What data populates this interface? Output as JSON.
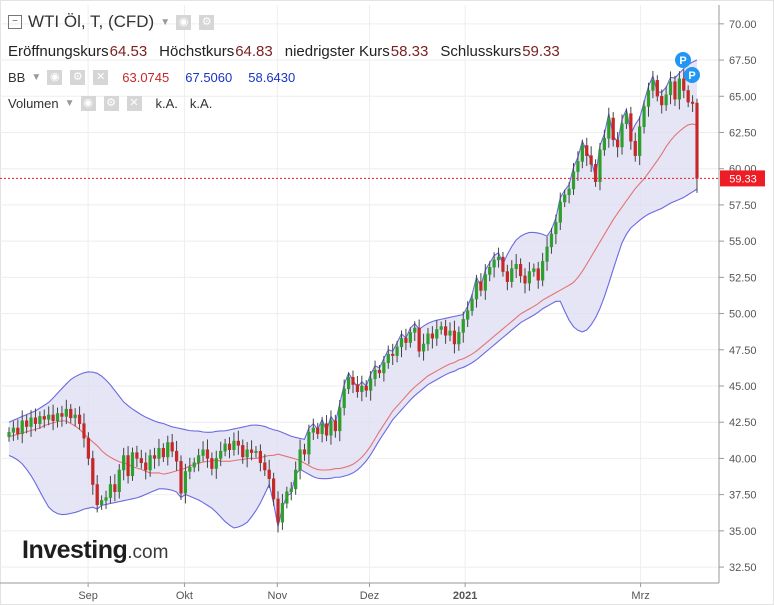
{
  "header": {
    "title": "WTI Öl, T, (CFD)"
  },
  "ohlc": [
    {
      "label": "Eröffnungskurs",
      "value": "64.53"
    },
    {
      "label": "Höchstkurs",
      "value": "64.83"
    },
    {
      "label": "niedrigster Kurs",
      "value": "58.33"
    },
    {
      "label": "Schlusskurs",
      "value": "59.33"
    }
  ],
  "bb": {
    "label": "BB",
    "middle": "63.0745",
    "upper": "67.5060",
    "lower": "58.6430"
  },
  "volume": {
    "label": "Volumen",
    "value1": "k.A.",
    "value2": "k.A."
  },
  "logo": {
    "main": "Investing",
    "suffix": ".com"
  },
  "price_badge": "59.33",
  "markers": [
    "P",
    "P"
  ],
  "colors": {
    "up": "#2e9e2e",
    "down": "#c62828",
    "band_fill": "#dcdcf3",
    "band_line": "#6a6ae0",
    "mid_line": "#e57373",
    "accent": "#ee1c25"
  },
  "chart_data": {
    "type": "candlestick",
    "x_tick_labels": [
      "Sep",
      "Okt",
      "Nov",
      "Dez",
      "2021",
      "Mrz"
    ],
    "y_ticks": [
      "32.50",
      "35.00",
      "37.50",
      "40.00",
      "42.50",
      "45.00",
      "47.50",
      "50.00",
      "52.50",
      "55.00",
      "57.50",
      "60.00",
      "62.50",
      "65.00",
      "67.50",
      "70.00"
    ],
    "ylim": [
      31.4,
      71.3
    ],
    "grid": true,
    "last_price": 59.33,
    "closes": [
      41.8,
      42.1,
      41.7,
      42.6,
      42.2,
      42.8,
      42.4,
      42.9,
      42.7,
      43.0,
      42.6,
      43.1,
      42.9,
      43.4,
      42.8,
      43.0,
      42.4,
      41.4,
      40.0,
      38.2,
      36.8,
      37.1,
      37.3,
      38.2,
      37.7,
      39.2,
      40.2,
      38.8,
      40.4,
      40.0,
      39.7,
      39.2,
      40.2,
      40.0,
      40.7,
      40.1,
      41.1,
      40.5,
      39.8,
      37.6,
      39.1,
      39.4,
      39.7,
      40.2,
      40.6,
      40.0,
      39.3,
      40.0,
      40.5,
      41.0,
      40.6,
      41.2,
      40.9,
      40.1,
      40.6,
      40.4,
      40.5,
      39.7,
      39.2,
      38.6,
      37.2,
      35.6,
      36.9,
      37.7,
      37.9,
      39.2,
      40.6,
      40.3,
      41.8,
      42.1,
      41.7,
      42.4,
      41.6,
      42.6,
      41.9,
      43.5,
      44.8,
      45.6,
      45.1,
      44.6,
      45.0,
      44.7,
      45.5,
      46.1,
      45.9,
      46.6,
      47.2,
      47.1,
      47.7,
      48.3,
      48.0,
      48.7,
      49.0,
      47.4,
      47.9,
      48.6,
      48.3,
      48.9,
      49.1,
      48.5,
      48.8,
      47.9,
      48.7,
      49.6,
      50.2,
      51.0,
      52.2,
      51.6,
      52.7,
      53.2,
      53.7,
      53.9,
      52.9,
      52.2,
      53.1,
      53.4,
      52.6,
      52.1,
      52.9,
      53.1,
      52.3,
      53.6,
      54.6,
      55.5,
      56.3,
      57.7,
      58.2,
      58.6,
      59.8,
      60.5,
      61.6,
      60.9,
      60.3,
      59.1,
      61.3,
      62.1,
      63.5,
      62.0,
      61.5,
      63.1,
      63.8,
      61.9,
      60.9,
      62.9,
      64.3,
      65.4,
      66.1,
      65.0,
      64.4,
      65.1,
      66.0,
      64.8,
      66.2,
      65.4,
      64.6,
      64.5,
      59.33
    ],
    "bb_mid": [
      41.5,
      41.6,
      41.7,
      41.8,
      41.9,
      42.0,
      42.1,
      42.3,
      42.4,
      42.5,
      42.6,
      42.6,
      42.4,
      42.2,
      41.9,
      41.5,
      41.2,
      40.9,
      40.5,
      40.2,
      40.0,
      39.8,
      39.7,
      39.6,
      39.4,
      39.3,
      39.2,
      39.0,
      39.0,
      39.0,
      38.9,
      39.0,
      39.1,
      39.2,
      39.3,
      39.5,
      39.6,
      39.7,
      39.8,
      39.8,
      39.9,
      39.8,
      39.8,
      39.8,
      39.9,
      39.9,
      40.0,
      40.0,
      40.0,
      40.1,
      40.2,
      40.2,
      40.3,
      40.2,
      40.1,
      40.0,
      39.9,
      39.7,
      39.5,
      39.3,
      39.2,
      39.2,
      39.2,
      39.3,
      39.3,
      39.4,
      39.5,
      39.7,
      40.0,
      40.4,
      40.9,
      41.5,
      42.1,
      42.6,
      43.2,
      43.6,
      44.0,
      44.4,
      44.8,
      45.1,
      45.4,
      45.7,
      45.9,
      46.1,
      46.3,
      46.5,
      46.6,
      46.8,
      46.9,
      47.1,
      47.3,
      47.6,
      47.9,
      48.2,
      48.5,
      48.8,
      49.1,
      49.4,
      49.7,
      50.0,
      50.2,
      50.4,
      50.6,
      50.9,
      51.1,
      51.3,
      51.5,
      51.7,
      51.9,
      52.1,
      52.5,
      53.0,
      53.6,
      54.2,
      54.8,
      55.4,
      56.0,
      56.6,
      57.1,
      57.6,
      58.1,
      58.6,
      59.0,
      59.4,
      59.9,
      60.4,
      60.9,
      61.5,
      62.0,
      62.4,
      62.7,
      63.0,
      63.1,
      63.0
    ],
    "bb_mid_start": 0,
    "bb_upper": [
      42.5,
      42.7,
      42.9,
      43.1,
      43.3,
      43.6,
      43.9,
      44.4,
      44.9,
      45.4,
      45.7,
      45.9,
      46.0,
      45.9,
      45.6,
      45.1,
      44.5,
      43.9,
      43.5,
      43.2,
      42.9,
      42.7,
      42.5,
      42.4,
      42.2,
      42.1,
      42.0,
      41.9,
      41.9,
      41.8,
      41.8,
      41.9,
      41.9,
      42.0,
      42.1,
      42.2,
      42.3,
      42.3,
      42.2,
      42.0,
      41.9,
      41.7,
      41.5,
      41.4,
      41.3,
      41.3,
      41.4,
      41.8,
      42.2,
      42.8,
      43.3,
      43.7,
      44.3,
      44.8,
      45.5,
      46.3,
      46.8,
      47.3,
      47.7,
      48.2,
      48.6,
      49.0,
      49.3,
      49.5,
      49.6,
      49.7,
      49.8,
      49.9,
      50.0,
      50.2,
      50.5,
      51.2,
      52.1,
      53.2,
      54.2,
      55.0,
      55.4,
      55.6,
      55.6,
      55.5,
      55.3,
      55.1,
      54.9,
      54.7,
      55.0,
      55.7,
      56.5,
      57.3,
      58.5,
      59.5,
      60.4,
      61.3,
      62.2,
      63.2,
      63.8,
      64.4,
      64.9,
      65.4,
      65.9,
      66.4,
      66.9,
      67.3,
      67.5
    ],
    "bb_upper_start": 29,
    "bb_lower": [
      40.2,
      40.0,
      39.6,
      39.0,
      38.2,
      37.3,
      36.5,
      36.2,
      36.1,
      36.2,
      36.3,
      36.5,
      36.6,
      36.7,
      36.8,
      36.9,
      37.0,
      37.1,
      37.2,
      37.3,
      37.5,
      37.7,
      37.9,
      37.9,
      37.8,
      37.6,
      37.5,
      37.3,
      37.1,
      36.8,
      36.5,
      36.0,
      35.5,
      35.2,
      35.3,
      35.6,
      36.2,
      37.0,
      38.0,
      39.0,
      39.9,
      40.6,
      41.1,
      41.7,
      42.1,
      42.6,
      43.1,
      43.5,
      43.9,
      44.3,
      44.7,
      45.1,
      45.4,
      45.8,
      46.1,
      46.4,
      46.7,
      47.0,
      47.2,
      47.4,
      47.6,
      47.9,
      48.2,
      48.5,
      48.7,
      49.0,
      49.3,
      49.5,
      49.8,
      50.0,
      50.3,
      50.6,
      50.9,
      51.1,
      51.3,
      51.5,
      51.6,
      51.7,
      51.8,
      51.7,
      51.5,
      50.8,
      49.7,
      49.0,
      48.7,
      48.9,
      49.6,
      50.6,
      52.0,
      53.5,
      54.9,
      55.8,
      56.2,
      56.6,
      56.9,
      57.1,
      57.3,
      57.6,
      57.8,
      58.0,
      58.3,
      58.6
    ]
  }
}
